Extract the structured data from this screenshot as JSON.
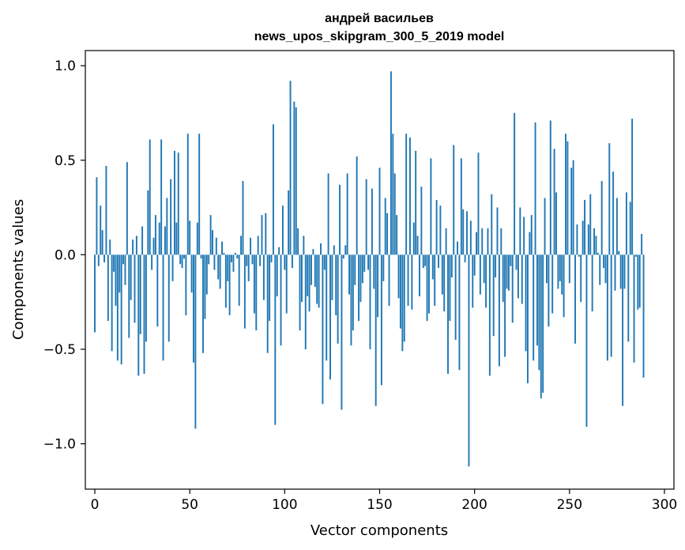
{
  "chart_data": {
    "type": "bar",
    "title": "андрей васильев",
    "subtitle": "news_upos_skipgram_300_5_2019 model",
    "xlabel": "Vector components",
    "ylabel": "Components values",
    "xlim": [
      -5,
      305
    ],
    "ylim": [
      -1.24,
      1.08
    ],
    "xticks": [
      0,
      50,
      100,
      150,
      200,
      250,
      300
    ],
    "xtick_labels": [
      "0",
      "50",
      "100",
      "150",
      "200",
      "250",
      "300"
    ],
    "yticks": [
      -1.0,
      -0.5,
      0.0,
      0.5,
      1.0
    ],
    "ytick_labels": [
      "−1.0",
      "−0.5",
      "0.0",
      "0.5",
      "1.0"
    ],
    "series_color": "#1f77b4",
    "x_start": 0,
    "values": [
      -0.41,
      0.41,
      -0.06,
      0.26,
      0.13,
      -0.04,
      0.47,
      -0.35,
      0.08,
      -0.51,
      -0.09,
      -0.27,
      -0.56,
      -0.2,
      -0.58,
      -0.05,
      -0.16,
      0.49,
      -0.44,
      -0.24,
      0.08,
      -0.36,
      0.1,
      -0.64,
      -0.42,
      0.15,
      -0.63,
      -0.46,
      0.34,
      0.61,
      -0.08,
      0.09,
      0.21,
      -0.38,
      0.17,
      0.61,
      -0.56,
      0.15,
      0.3,
      -0.46,
      0.4,
      -0.14,
      0.55,
      0.17,
      0.54,
      -0.05,
      -0.07,
      -0.02,
      -0.32,
      0.64,
      0.18,
      -0.2,
      -0.57,
      -0.92,
      0.17,
      0.64,
      -0.02,
      -0.52,
      -0.34,
      -0.21,
      -0.05,
      0.21,
      0.13,
      -0.08,
      0.09,
      -0.13,
      -0.18,
      0.07,
      0.01,
      -0.28,
      -0.14,
      -0.32,
      -0.04,
      -0.09,
      0.01,
      -0.02,
      -0.27,
      0.1,
      0.39,
      -0.39,
      -0.06,
      -0.14,
      0.09,
      -0.05,
      -0.31,
      -0.4,
      0.1,
      -0.06,
      0.21,
      -0.24,
      0.22,
      -0.52,
      -0.35,
      -0.04,
      0.69,
      -0.9,
      -0.22,
      0.04,
      -0.48,
      0.26,
      -0.08,
      -0.31,
      0.34,
      0.92,
      -0.07,
      0.81,
      0.78,
      0.14,
      -0.4,
      -0.25,
      0.1,
      -0.5,
      -0.22,
      -0.3,
      -0.16,
      0.03,
      -0.17,
      -0.26,
      -0.28,
      0.06,
      -0.79,
      -0.08,
      -0.56,
      0.43,
      -0.66,
      -0.24,
      0.05,
      -0.32,
      -0.47,
      0.37,
      -0.82,
      -0.02,
      0.05,
      0.43,
      -0.21,
      -0.48,
      -0.4,
      -0.16,
      0.52,
      -0.35,
      -0.25,
      -0.15,
      -0.09,
      0.4,
      -0.08,
      -0.5,
      0.35,
      -0.18,
      -0.8,
      -0.33,
      0.46,
      -0.69,
      -0.14,
      0.3,
      0.22,
      -0.27,
      0.97,
      0.64,
      0.43,
      0.21,
      -0.23,
      -0.39,
      -0.51,
      -0.46,
      0.64,
      -0.27,
      0.62,
      -0.29,
      0.17,
      0.55,
      0.1,
      -0.22,
      0.36,
      -0.07,
      -0.06,
      -0.35,
      -0.31,
      0.51,
      -0.13,
      -0.27,
      0.29,
      -0.07,
      0.26,
      -0.21,
      -0.3,
      0.14,
      -0.63,
      -0.35,
      -0.12,
      0.58,
      -0.45,
      0.07,
      -0.61,
      0.51,
      0.24,
      -0.04,
      0.23,
      -1.12,
      0.18,
      -0.28,
      -0.11,
      0.12,
      0.54,
      -0.21,
      0.14,
      -0.15,
      -0.28,
      0.14,
      -0.64,
      0.32,
      -0.43,
      -0.12,
      0.25,
      -0.59,
      0.14,
      -0.25,
      -0.54,
      -0.18,
      -0.19,
      -0.06,
      -0.36,
      0.75,
      -0.08,
      -0.23,
      0.25,
      -0.26,
      0.2,
      -0.51,
      -0.68,
      0.12,
      0.21,
      -0.56,
      0.7,
      -0.48,
      -0.61,
      -0.76,
      -0.73,
      0.3,
      -0.15,
      -0.38,
      0.71,
      -0.31,
      0.56,
      0.33,
      -0.18,
      -0.14,
      -0.21,
      -0.33,
      0.64,
      0.6,
      -0.15,
      0.46,
      0.5,
      -0.47,
      0.16,
      -0.01,
      -0.25,
      0.18,
      0.29,
      -0.91,
      0.16,
      0.32,
      -0.3,
      0.14,
      0.1,
      0.01,
      -0.16,
      0.39,
      -0.07,
      -0.15,
      -0.56,
      0.59,
      -0.54,
      0.44,
      -0.19,
      0.3,
      0.02,
      -0.18,
      -0.8,
      -0.18,
      0.33,
      -0.46,
      0.28,
      0.72,
      -0.57,
      -0.01,
      -0.29,
      -0.28,
      0.11,
      -0.65
    ]
  }
}
